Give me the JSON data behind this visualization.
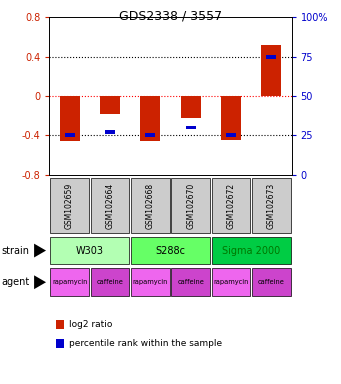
{
  "title": "GDS2338 / 3557",
  "samples": [
    "GSM102659",
    "GSM102664",
    "GSM102668",
    "GSM102670",
    "GSM102672",
    "GSM102673"
  ],
  "log2_ratio": [
    -0.46,
    -0.18,
    -0.46,
    -0.22,
    -0.45,
    0.52
  ],
  "percentile_rank": [
    25,
    27,
    25,
    30,
    25,
    75
  ],
  "strains": [
    {
      "label": "W303",
      "cols": [
        0,
        1
      ],
      "color": "#b3ffb3"
    },
    {
      "label": "S288c",
      "cols": [
        2,
        3
      ],
      "color": "#66ff66"
    },
    {
      "label": "Sigma 2000",
      "cols": [
        4,
        5
      ],
      "color": "#00cc44"
    }
  ],
  "strain_text_colors": [
    "#000000",
    "#000000",
    "#007700"
  ],
  "agents": [
    {
      "label": "rapamycin",
      "col": 0
    },
    {
      "label": "caffeine",
      "col": 1
    },
    {
      "label": "rapamycin",
      "col": 2
    },
    {
      "label": "caffeine",
      "col": 3
    },
    {
      "label": "rapamycin",
      "col": 4
    },
    {
      "label": "caffeine",
      "col": 5
    }
  ],
  "agent_colors": {
    "rapamycin": "#ee66ee",
    "caffeine": "#cc44cc"
  },
  "ylim": [
    -0.8,
    0.8
  ],
  "yticks_left": [
    -0.8,
    -0.4,
    0.0,
    0.4,
    0.8
  ],
  "yticks_left_labels": [
    "-0.8",
    "-0.4",
    "0",
    "0.4",
    "0.8"
  ],
  "yticks_right_labels": [
    "0",
    "25",
    "50",
    "75",
    "100%"
  ],
  "bar_color_red": "#cc2200",
  "bar_color_blue": "#0000cc",
  "sample_box_color": "#cccccc",
  "bar_width": 0.5,
  "blue_bar_width": 0.25,
  "blue_bar_height": 0.04
}
